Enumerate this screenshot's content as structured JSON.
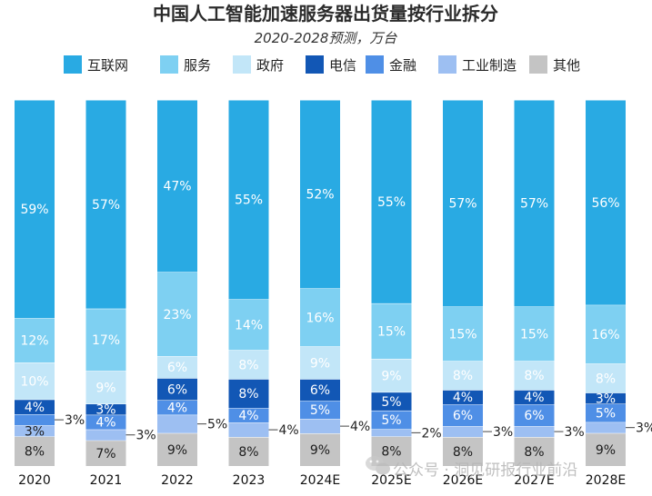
{
  "chart_data": {
    "type": "bar",
    "stacked": true,
    "normalized": true,
    "title": "中国人工智能加速服务器出货量按行业拆分",
    "subtitle": "2020-2028预测，万台",
    "categories": [
      "2020",
      "2021",
      "2022",
      "2023",
      "2024E",
      "2025E",
      "2026E",
      "2027E",
      "2028E"
    ],
    "series": [
      {
        "name": "其他",
        "color": "#c4c4c4",
        "values": [
          8,
          7,
          9,
          8,
          9,
          8,
          8,
          8,
          9
        ]
      },
      {
        "name": "工业制造",
        "color": "#9dbff2",
        "values": [
          3,
          3,
          5,
          4,
          4,
          2,
          3,
          3,
          3
        ]
      },
      {
        "name": "金融",
        "color": "#4f8fe6",
        "values": [
          3,
          4,
          4,
          4,
          5,
          5,
          6,
          6,
          5
        ]
      },
      {
        "name": "电信",
        "color": "#1257b5",
        "values": [
          4,
          3,
          6,
          8,
          6,
          5,
          4,
          4,
          3
        ]
      },
      {
        "name": "政府",
        "color": "#c2e6f8",
        "values": [
          10,
          9,
          6,
          8,
          9,
          9,
          8,
          8,
          8
        ]
      },
      {
        "name": "服务",
        "color": "#7ed0f2",
        "values": [
          12,
          17,
          23,
          14,
          16,
          15,
          15,
          15,
          16
        ]
      },
      {
        "name": "互联网",
        "color": "#29aae3",
        "values": [
          59,
          57,
          47,
          55,
          52,
          55,
          57,
          57,
          56
        ]
      }
    ],
    "legend_order": [
      "互联网",
      "服务",
      "政府",
      "电信",
      "金融",
      "工业制造",
      "其他"
    ],
    "legend_position": "top",
    "callout_series": [
      "工业制造"
    ],
    "callout_overrides": {
      "0": [
        "金融"
      ]
    },
    "value_suffix": "%",
    "xlabel": "",
    "ylabel": "",
    "grid": false
  },
  "watermark": {
    "text": "公众号 · 洞见研报行业前沿",
    "icon": "wechat-icon"
  }
}
